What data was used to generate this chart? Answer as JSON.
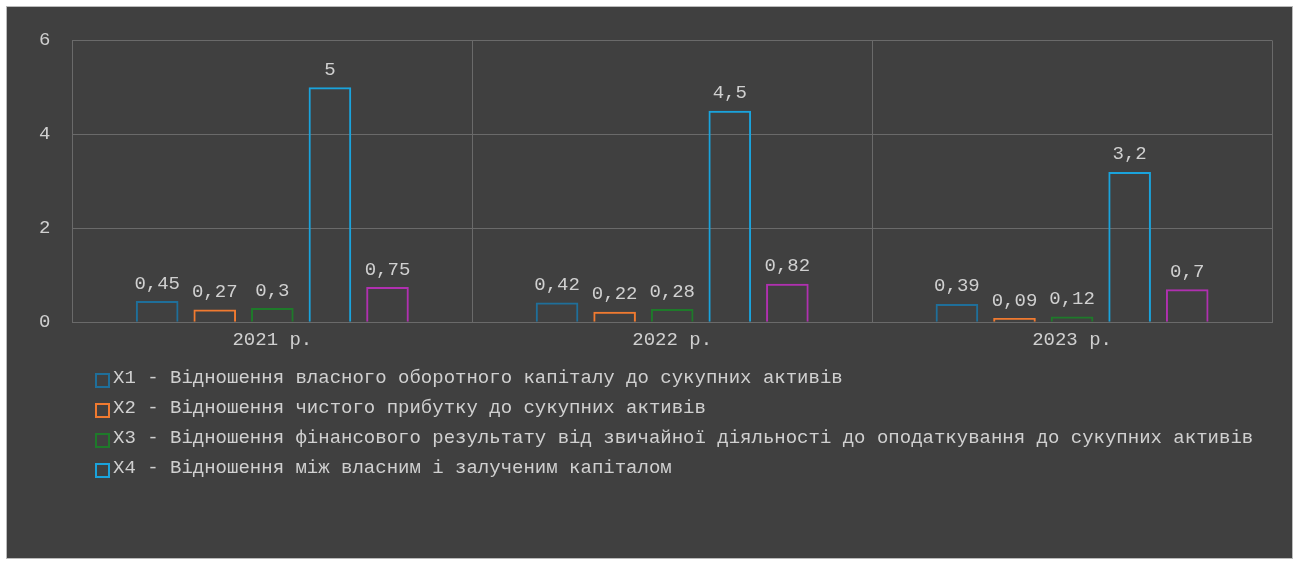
{
  "chart_data": {
    "type": "bar",
    "categories": [
      "2021 р.",
      "2022 р.",
      "2023 р."
    ],
    "series": [
      {
        "name": "X1 - Відношення власного оборотного капіталу до сукупних активів",
        "color": "#1f6f9a",
        "values": [
          0.45,
          0.42,
          0.39
        ],
        "value_labels": [
          "0,45",
          "0,42",
          "0,39"
        ]
      },
      {
        "name": "X2 - Відношення чистого прибутку до сукупних активів",
        "color": "#f07a30",
        "values": [
          0.27,
          0.22,
          0.09
        ],
        "value_labels": [
          "0,27",
          "0,22",
          "0,09"
        ]
      },
      {
        "name": "X3 - Відношення фінансового результату від звичайної діяльності до оподаткування до сукупних активів",
        "color": "#1e7a2a",
        "values": [
          0.3,
          0.28,
          0.12
        ],
        "value_labels": [
          "0,3",
          "0,28",
          "0,12"
        ]
      },
      {
        "name": "X4 - Відношення між власним і залученим капіталом",
        "color": "#1aa3dc",
        "values": [
          5,
          4.5,
          3.2
        ],
        "value_labels": [
          "5",
          "4,5",
          "3,2"
        ]
      },
      {
        "color": "#b030b0",
        "values": [
          0.75,
          0.82,
          0.7
        ],
        "value_labels": [
          "0,75",
          "0,82",
          "0,7"
        ]
      }
    ],
    "ylim": [
      0,
      6
    ],
    "yticks": [
      0,
      2,
      4,
      6
    ],
    "grid": true,
    "legend": "bottom"
  }
}
